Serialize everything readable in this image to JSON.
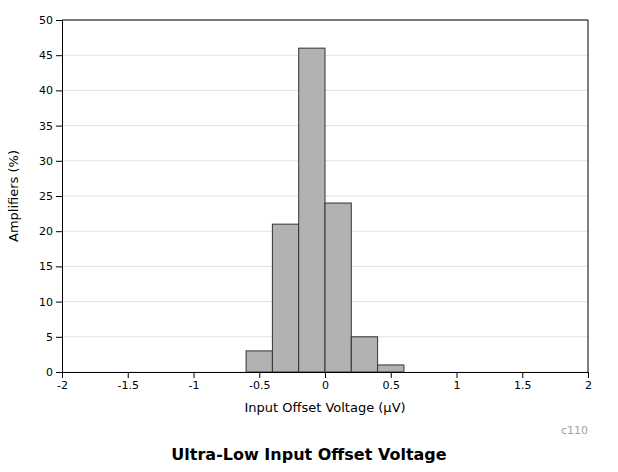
{
  "chart_data": {
    "type": "histogram",
    "title": "Ultra-Low Input Offset Voltage",
    "xlabel": "Input Offset Voltage (μV)",
    "ylabel": "Amplifiers (%)",
    "bins": [
      -0.6,
      -0.4,
      -0.2,
      0.0,
      0.2,
      0.4,
      0.6
    ],
    "values": [
      3,
      21,
      46,
      24,
      5,
      1
    ],
    "color": "#b2b2b2",
    "xlim": [
      -2,
      2
    ],
    "ylim": [
      0,
      50
    ],
    "xticks": [
      -2,
      -1.5,
      -1,
      -0.5,
      0,
      0.5,
      1,
      1.5,
      2
    ],
    "yticks": [
      0,
      5,
      10,
      15,
      20,
      25,
      30,
      35,
      40,
      45,
      50
    ],
    "grid": "y",
    "annotation": "c110"
  }
}
